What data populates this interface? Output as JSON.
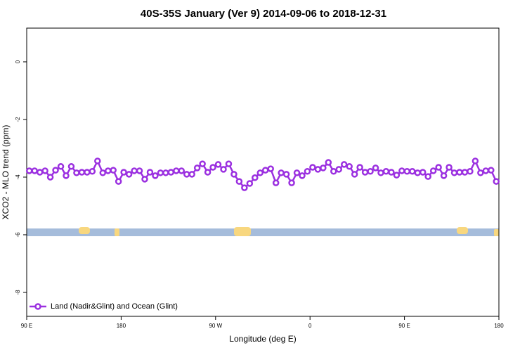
{
  "chart_data": {
    "type": "line",
    "title": "40S-35S January (Ver 9)   2014-09-06 to 2018-12-31",
    "x_label": "Longitude (deg E)",
    "y_label": "XCO2 - MLO trend (ppm)",
    "xlim": [
      90,
      540
    ],
    "ylim": [
      -8.83,
      1.17
    ],
    "xticks": [
      {
        "value": 90,
        "label": "90 E"
      },
      180,
      {
        "value": 270,
        "label": "90 W"
      },
      {
        "value": 360,
        "label": "0"
      },
      {
        "value": 450,
        "label": "90 E"
      },
      {
        "value": 540,
        "label": "180"
      }
    ],
    "yticks": [
      0,
      -2,
      -4,
      -6,
      -8
    ],
    "legend": "bottom-left",
    "x": [
      92.5,
      97.5,
      102.5,
      107.5,
      112.5,
      117.5,
      122.5,
      127.5,
      132.5,
      137.5,
      142.5,
      147.5,
      152.5,
      157.5,
      162.5,
      167.5,
      172.5,
      177.5,
      182.5,
      187.5,
      192.5,
      197.5,
      202.5,
      207.5,
      212.5,
      217.5,
      222.5,
      227.5,
      232.5,
      237.5,
      242.5,
      247.5,
      252.5,
      257.5,
      262.5,
      267.5,
      272.5,
      277.5,
      282.5,
      287.5,
      292.5,
      297.5,
      302.5,
      307.5,
      312.5,
      317.5,
      322.5,
      327.5,
      332.5,
      337.5,
      342.5,
      347.5,
      352.5,
      357.5,
      362.5,
      367.5,
      372.5,
      377.5,
      382.5,
      387.5,
      392.5,
      397.5,
      402.5,
      407.5,
      412.5,
      417.5,
      422.5,
      427.5,
      432.5,
      437.5,
      442.5,
      447.5,
      452.5,
      457.5,
      462.5,
      467.5,
      472.5,
      477.5,
      482.5,
      487.5,
      492.5,
      497.5,
      502.5,
      507.5,
      512.5,
      517.5,
      522.5,
      527.5,
      532.5,
      537.5
    ],
    "series": [
      {
        "name": "Land (Nadir&Glint) and Ocean (Glint)",
        "color": "#9b30e0",
        "values": [
          -3.78,
          -3.78,
          -3.83,
          -3.78,
          -4.0,
          -3.76,
          -3.63,
          -3.95,
          -3.63,
          -3.85,
          -3.83,
          -3.83,
          -3.8,
          -3.44,
          -3.85,
          -3.78,
          -3.76,
          -4.15,
          -3.83,
          -3.9,
          -3.78,
          -3.78,
          -4.07,
          -3.83,
          -3.95,
          -3.85,
          -3.85,
          -3.83,
          -3.78,
          -3.78,
          -3.9,
          -3.9,
          -3.68,
          -3.54,
          -3.83,
          -3.66,
          -3.56,
          -3.73,
          -3.54,
          -3.9,
          -4.15,
          -4.37,
          -4.22,
          -4.02,
          -3.85,
          -3.76,
          -3.71,
          -4.2,
          -3.85,
          -3.9,
          -4.2,
          -3.85,
          -3.95,
          -3.8,
          -3.66,
          -3.73,
          -3.68,
          -3.49,
          -3.8,
          -3.73,
          -3.56,
          -3.63,
          -3.9,
          -3.66,
          -3.83,
          -3.8,
          -3.68,
          -3.85,
          -3.8,
          -3.83,
          -3.93,
          -3.78,
          -3.8,
          -3.8,
          -3.85,
          -3.83,
          -3.98,
          -3.78,
          -3.66,
          -3.95,
          -3.66,
          -3.85,
          -3.83,
          -3.83,
          -3.8,
          -3.44,
          -3.85,
          -3.78,
          -3.76,
          -4.15
        ]
      }
    ]
  }
}
